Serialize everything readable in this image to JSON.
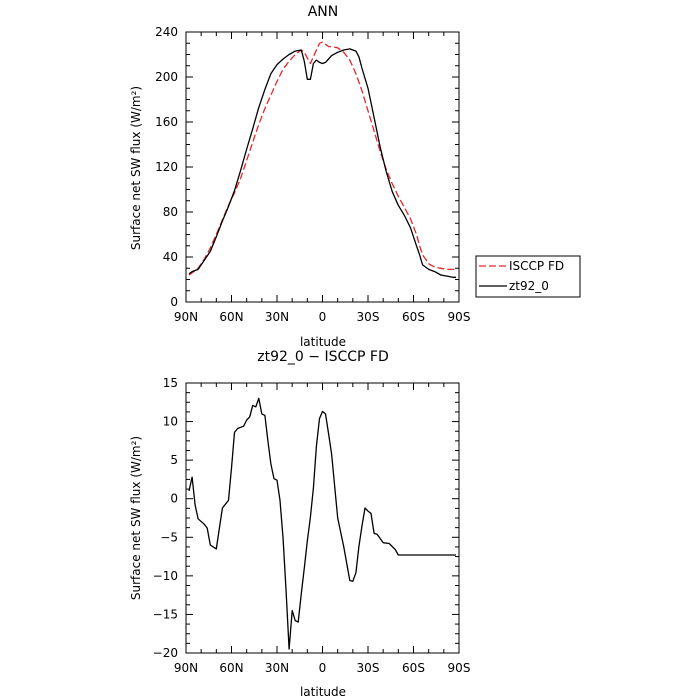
{
  "chart_data": [
    {
      "type": "line",
      "title": "ANN",
      "xlabel": "latitude",
      "ylabel": "Surface net SW flux (W/m²)",
      "xlim": [
        -90,
        90
      ],
      "ylim": [
        0,
        240
      ],
      "xticks": [
        -90,
        -60,
        -30,
        0,
        30,
        60,
        90
      ],
      "xtick_labels": [
        "90N",
        "60N",
        "30N",
        "0",
        "30S",
        "60S",
        "90S"
      ],
      "yticks": [
        0,
        40,
        80,
        120,
        160,
        200,
        240
      ],
      "ytick_labels": [
        "0",
        "40",
        "80",
        "120",
        "160",
        "200",
        "240"
      ],
      "legend_position": "right",
      "series": [
        {
          "name": "ISCCP FD",
          "color": "#e8262a",
          "style": "dashed",
          "x": [
            -88,
            -86,
            -82,
            -78,
            -74,
            -70,
            -66,
            -62,
            -58,
            -54,
            -50,
            -46,
            -42,
            -38,
            -34,
            -30,
            -26,
            -22,
            -18,
            -14,
            -12,
            -10,
            -8,
            -6,
            -4,
            -2,
            0,
            2,
            4,
            6,
            10,
            14,
            18,
            22,
            26,
            30,
            34,
            38,
            42,
            46,
            50,
            54,
            58,
            62,
            64,
            66,
            70,
            74,
            78,
            82,
            86,
            88
          ],
          "y": [
            24,
            26,
            30,
            38,
            48,
            60,
            73,
            86,
            97,
            110,
            126,
            142,
            158,
            172,
            184,
            196,
            207,
            214,
            220,
            224,
            222,
            217,
            212,
            218,
            224,
            230,
            231,
            229,
            227,
            227,
            226,
            222,
            215,
            203,
            188,
            170,
            152,
            134,
            118,
            105,
            94,
            84,
            74,
            60,
            50,
            42,
            34,
            31,
            30,
            29,
            29,
            29
          ]
        },
        {
          "name": "zt92_0",
          "color": "#000000",
          "style": "solid",
          "x": [
            -88,
            -86,
            -82,
            -78,
            -74,
            -70,
            -66,
            -62,
            -58,
            -54,
            -50,
            -46,
            -42,
            -38,
            -34,
            -30,
            -26,
            -22,
            -18,
            -14,
            -12,
            -10,
            -8,
            -6,
            -4,
            -2,
            0,
            2,
            4,
            6,
            10,
            14,
            18,
            22,
            24,
            26,
            30,
            34,
            38,
            42,
            46,
            50,
            54,
            58,
            62,
            64,
            66,
            70,
            74,
            78,
            82,
            86,
            88
          ],
          "y": [
            25,
            27,
            29,
            37,
            45,
            58,
            72,
            85,
            99,
            117,
            136,
            154,
            173,
            189,
            203,
            211,
            216,
            220,
            223,
            224,
            214,
            198,
            198,
            212,
            215,
            213,
            212,
            213,
            216,
            219,
            222,
            224,
            225,
            223,
            218,
            208,
            190,
            164,
            138,
            116,
            98,
            86,
            77,
            66,
            50,
            42,
            33,
            29,
            27,
            24,
            23,
            22,
            22
          ]
        }
      ]
    },
    {
      "type": "line",
      "title": "zt92_0 − ISCCP FD",
      "xlabel": "latitude",
      "ylabel": "Surface net SW flux (W/m²)",
      "xlim": [
        -90,
        90
      ],
      "ylim": [
        -20,
        15
      ],
      "xticks": [
        -90,
        -60,
        -30,
        0,
        30,
        60,
        90
      ],
      "xtick_labels": [
        "90N",
        "60N",
        "30N",
        "0",
        "30S",
        "60S",
        "90S"
      ],
      "yticks": [
        -20,
        -15,
        -10,
        -5,
        0,
        5,
        10,
        15
      ],
      "ytick_labels": [
        "−20",
        "−15",
        "−10",
        "−5",
        "0",
        "5",
        "10",
        "15"
      ],
      "series": [
        {
          "color": "#000000",
          "style": "solid",
          "x": [
            -88,
            -86,
            -84,
            -82,
            -78,
            -76,
            -74,
            -70,
            -66,
            -62,
            -60,
            -58,
            -56,
            -52,
            -50,
            -48,
            -46,
            -44,
            -42,
            -40,
            -38,
            -36,
            -34,
            -32,
            -30,
            -28,
            -26,
            -24,
            -22,
            -20,
            -18,
            -16,
            -14,
            -12,
            -10,
            -8,
            -6,
            -4,
            -2,
            0,
            2,
            4,
            6,
            10,
            14,
            18,
            20,
            22,
            24,
            26,
            28,
            30,
            32,
            34,
            36,
            40,
            44,
            48,
            50,
            52,
            54,
            56,
            58,
            60,
            62,
            64,
            66,
            68,
            70,
            72,
            74,
            76,
            78,
            80,
            82,
            84,
            86,
            88
          ],
          "y": [
            1,
            2.8,
            -0.8,
            -2.6,
            -3.3,
            -3.8,
            -6.0,
            -6.5,
            -1.2,
            -0.2,
            4.0,
            8.6,
            9.1,
            9.4,
            10.2,
            10.6,
            12.1,
            11.9,
            13.0,
            11.0,
            10.8,
            7.5,
            4.5,
            2.6,
            2.4,
            -0.2,
            -5.2,
            -12.0,
            -19.5,
            -14.5,
            -15.8,
            -16.0,
            -12.3,
            -9.0,
            -5.5,
            -2.4,
            1.4,
            6.8,
            10.4,
            11.3,
            11.0,
            8.4,
            5.8,
            -2.5,
            -6.2,
            -10.6,
            -10.7,
            -9.6,
            -6.2,
            -3.6,
            -1.2,
            -1.6,
            -1.9,
            -4.5,
            -4.6,
            -5.7,
            -5.8,
            -6.6,
            -7.3,
            -7.3,
            -7.3,
            -7.3,
            -7.3,
            -7.3,
            -7.3,
            -7.3,
            -7.3,
            -7.3,
            -7.3,
            -7.3,
            -7.3,
            -7.3,
            -7.3,
            -7.3,
            -7.3,
            -7.3,
            -7.3,
            -7.3
          ]
        }
      ]
    }
  ]
}
